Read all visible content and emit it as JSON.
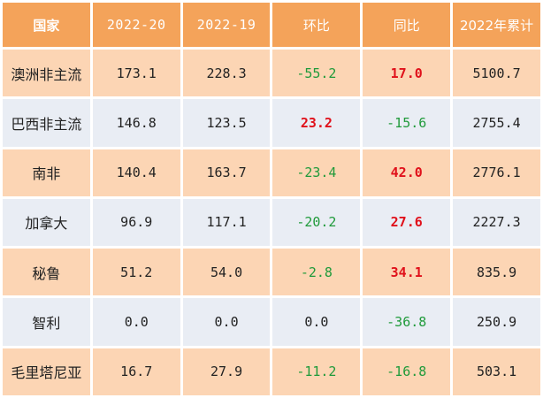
{
  "table": {
    "headers": [
      "国家",
      "2022-20",
      "2022-19",
      "环比",
      "同比",
      "2022年累计"
    ],
    "rows": [
      [
        "澳洲非主流",
        "173.1",
        "228.3",
        "-55.2",
        "17.0",
        "5100.7"
      ],
      [
        "巴西非主流",
        "146.8",
        "123.5",
        "23.2",
        "-15.6",
        "2755.4"
      ],
      [
        "南非",
        "140.4",
        "163.7",
        "-23.4",
        "42.0",
        "2776.1"
      ],
      [
        "加拿大",
        "96.9",
        "117.1",
        "-20.2",
        "27.6",
        "2227.3"
      ],
      [
        "秘鲁",
        "51.2",
        "54.0",
        "-2.8",
        "34.1",
        "835.9"
      ],
      [
        "智利",
        "0.0",
        "0.0",
        "0.0",
        "-36.8",
        "250.9"
      ],
      [
        "毛里塔尼亚",
        "16.7",
        "27.9",
        "-11.2",
        "-16.8",
        "503.1"
      ]
    ]
  },
  "colors": {
    "header_bg": "#f4a35a",
    "row_odd_bg": "#fcd5b4",
    "row_even_bg": "#e9edf4",
    "positive_text": "#e0111b",
    "negative_text": "#1f9a3a"
  }
}
